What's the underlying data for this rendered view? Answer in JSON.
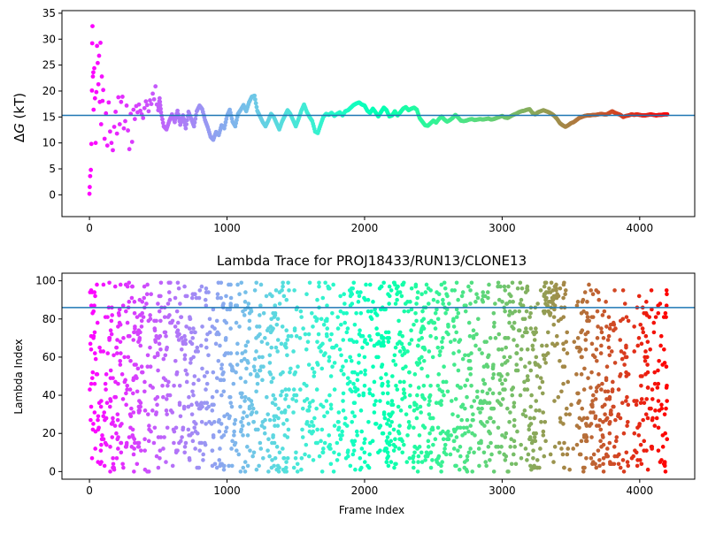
{
  "chart_data": [
    {
      "type": "scatter",
      "title": "",
      "xlabel": "",
      "ylabel": "ΔG (kT)",
      "ylabel_prefix": "Δ",
      "ylabel_var": "G",
      "ylabel_unit": " (kT)",
      "xlim": [
        -200,
        4400
      ],
      "ylim": [
        -4.2,
        35.5
      ],
      "xticks": [
        0,
        1000,
        2000,
        3000,
        4000
      ],
      "xtick_labels": [
        "0",
        "1000",
        "2000",
        "3000",
        "4000"
      ],
      "yticks": [
        0,
        5,
        10,
        15,
        20,
        25,
        30,
        35
      ],
      "ytick_labels": [
        "0",
        "5",
        "10",
        "15",
        "20",
        "25",
        "30",
        "35"
      ],
      "hline": 15.3,
      "hline_color": "#1f77b4",
      "colormap": "rainbow (frame index)",
      "frame_range": [
        0,
        4200
      ],
      "grid": false,
      "series": [
        {
          "points": [
            [
              0,
              0.2
            ],
            [
              2,
              1.5
            ],
            [
              5,
              3.6
            ],
            [
              10,
              4.8
            ],
            [
              14,
              9.8
            ],
            [
              18,
              20.1
            ],
            [
              20,
              29.2
            ],
            [
              22,
              32.5
            ],
            [
              25,
              22.8
            ],
            [
              28,
              23.6
            ],
            [
              30,
              16.4
            ],
            [
              35,
              24.4
            ],
            [
              40,
              18.6
            ],
            [
              45,
              10.0
            ],
            [
              50,
              19.8
            ],
            [
              55,
              28.7
            ],
            [
              60,
              25.4
            ],
            [
              65,
              21.3
            ],
            [
              70,
              26.8
            ],
            [
              75,
              17.9
            ],
            [
              80,
              29.3
            ],
            [
              85,
              13.6
            ],
            [
              90,
              22.8
            ],
            [
              95,
              18.1
            ],
            [
              100,
              20.2
            ],
            [
              110,
              10.8
            ],
            [
              120,
              15.7
            ],
            [
              130,
              9.5
            ],
            [
              140,
              17.8
            ],
            [
              150,
              12.2
            ],
            [
              160,
              10.0
            ],
            [
              170,
              8.6
            ],
            [
              180,
              13.1
            ],
            [
              190,
              16.0
            ],
            [
              200,
              11.8
            ],
            [
              210,
              18.8
            ],
            [
              220,
              13.6
            ],
            [
              230,
              17.9
            ],
            [
              240,
              18.9
            ],
            [
              250,
              12.8
            ],
            [
              260,
              14.2
            ],
            [
              270,
              17.2
            ],
            [
              280,
              12.4
            ],
            [
              290,
              8.8
            ],
            [
              300,
              15.6
            ],
            [
              310,
              10.2
            ],
            [
              320,
              16.4
            ],
            [
              330,
              14.6
            ],
            [
              340,
              17.1
            ],
            [
              350,
              15.9
            ],
            [
              360,
              17.4
            ],
            [
              370,
              16.2
            ],
            [
              380,
              15.5
            ],
            [
              390,
              14.8
            ],
            [
              400,
              16.7
            ],
            [
              410,
              18.0
            ],
            [
              420,
              17.3
            ],
            [
              430,
              16.1
            ],
            [
              440,
              18.2
            ],
            [
              450,
              17.5
            ],
            [
              460,
              19.5
            ],
            [
              470,
              18.4
            ],
            [
              480,
              20.9
            ],
            [
              490,
              17.4
            ],
            [
              500,
              16.3
            ],
            [
              510,
              18.6
            ],
            [
              520,
              15.9
            ],
            [
              540,
              13.2
            ],
            [
              560,
              12.6
            ],
            [
              580,
              14.2
            ],
            [
              600,
              15.5
            ],
            [
              620,
              14.0
            ],
            [
              640,
              16.2
            ],
            [
              660,
              13.5
            ],
            [
              680,
              15.3
            ],
            [
              700,
              12.8
            ],
            [
              720,
              16.0
            ],
            [
              740,
              14.6
            ],
            [
              760,
              13.2
            ],
            [
              780,
              16.1
            ],
            [
              800,
              17.2
            ],
            [
              820,
              16.5
            ],
            [
              840,
              14.4
            ],
            [
              860,
              13.0
            ],
            [
              880,
              11.2
            ],
            [
              900,
              10.6
            ],
            [
              920,
              12.1
            ],
            [
              940,
              11.5
            ],
            [
              960,
              13.4
            ],
            [
              980,
              12.8
            ],
            [
              1000,
              15.2
            ],
            [
              1020,
              16.4
            ],
            [
              1040,
              14.1
            ],
            [
              1060,
              13.2
            ],
            [
              1080,
              15.6
            ],
            [
              1100,
              16.4
            ],
            [
              1120,
              17.3
            ],
            [
              1140,
              16.1
            ],
            [
              1160,
              17.8
            ],
            [
              1180,
              18.9
            ],
            [
              1200,
              19.1
            ],
            [
              1220,
              16.2
            ],
            [
              1240,
              15.1
            ],
            [
              1260,
              14.0
            ],
            [
              1280,
              13.2
            ],
            [
              1300,
              14.3
            ],
            [
              1320,
              15.6
            ],
            [
              1340,
              15.0
            ],
            [
              1360,
              13.8
            ],
            [
              1380,
              12.6
            ],
            [
              1400,
              14.1
            ],
            [
              1420,
              15.2
            ],
            [
              1440,
              16.3
            ],
            [
              1460,
              15.6
            ],
            [
              1480,
              14.4
            ],
            [
              1500,
              13.2
            ],
            [
              1520,
              14.6
            ],
            [
              1540,
              16.2
            ],
            [
              1560,
              17.4
            ],
            [
              1580,
              16.0
            ],
            [
              1600,
              15.0
            ],
            [
              1620,
              14.2
            ],
            [
              1640,
              12.2
            ],
            [
              1660,
              11.9
            ],
            [
              1680,
              13.5
            ],
            [
              1700,
              15.0
            ],
            [
              1720,
              15.6
            ],
            [
              1740,
              15.4
            ],
            [
              1760,
              15.8
            ],
            [
              1780,
              15.2
            ],
            [
              1800,
              15.6
            ],
            [
              1820,
              15.9
            ],
            [
              1840,
              15.3
            ],
            [
              1860,
              16.1
            ],
            [
              1880,
              16.3
            ],
            [
              1900,
              16.8
            ],
            [
              1920,
              17.3
            ],
            [
              1940,
              17.6
            ],
            [
              1960,
              17.8
            ],
            [
              1980,
              17.4
            ],
            [
              2000,
              17.2
            ],
            [
              2020,
              16.2
            ],
            [
              2040,
              15.8
            ],
            [
              2060,
              16.6
            ],
            [
              2080,
              15.9
            ],
            [
              2100,
              15.1
            ],
            [
              2120,
              16.0
            ],
            [
              2140,
              16.8
            ],
            [
              2160,
              16.3
            ],
            [
              2180,
              15.1
            ],
            [
              2200,
              15.3
            ],
            [
              2220,
              16.1
            ],
            [
              2240,
              15.3
            ],
            [
              2260,
              15.9
            ],
            [
              2280,
              16.6
            ],
            [
              2300,
              16.9
            ],
            [
              2320,
              16.3
            ],
            [
              2340,
              16.6
            ],
            [
              2360,
              16.8
            ],
            [
              2380,
              16.4
            ],
            [
              2400,
              14.8
            ],
            [
              2420,
              14.1
            ],
            [
              2440,
              13.4
            ],
            [
              2460,
              13.3
            ],
            [
              2480,
              13.8
            ],
            [
              2500,
              14.3
            ],
            [
              2520,
              13.9
            ],
            [
              2540,
              14.6
            ],
            [
              2560,
              15.1
            ],
            [
              2580,
              14.5
            ],
            [
              2600,
              14.1
            ],
            [
              2620,
              14.4
            ],
            [
              2640,
              14.8
            ],
            [
              2660,
              15.4
            ],
            [
              2680,
              14.9
            ],
            [
              2700,
              14.3
            ],
            [
              2720,
              14.2
            ],
            [
              2740,
              14.3
            ],
            [
              2760,
              14.5
            ],
            [
              2780,
              14.6
            ],
            [
              2800,
              14.4
            ],
            [
              2820,
              14.5
            ],
            [
              2840,
              14.6
            ],
            [
              2860,
              14.5
            ],
            [
              2880,
              14.6
            ],
            [
              2900,
              14.7
            ],
            [
              2920,
              14.5
            ],
            [
              2940,
              14.6
            ],
            [
              2960,
              14.8
            ],
            [
              2980,
              15.0
            ],
            [
              3000,
              15.2
            ],
            [
              3020,
              14.9
            ],
            [
              3040,
              14.8
            ],
            [
              3060,
              15.1
            ],
            [
              3080,
              15.4
            ],
            [
              3100,
              15.6
            ],
            [
              3120,
              15.9
            ],
            [
              3140,
              16.1
            ],
            [
              3160,
              16.2
            ],
            [
              3180,
              16.4
            ],
            [
              3200,
              16.5
            ],
            [
              3220,
              15.8
            ],
            [
              3240,
              15.5
            ],
            [
              3260,
              15.9
            ],
            [
              3280,
              16.1
            ],
            [
              3300,
              16.3
            ],
            [
              3320,
              16.1
            ],
            [
              3340,
              15.9
            ],
            [
              3360,
              15.6
            ],
            [
              3380,
              15.2
            ],
            [
              3400,
              14.6
            ],
            [
              3420,
              13.8
            ],
            [
              3440,
              13.4
            ],
            [
              3460,
              13.1
            ],
            [
              3480,
              13.4
            ],
            [
              3500,
              13.8
            ],
            [
              3520,
              14.0
            ],
            [
              3540,
              14.4
            ],
            [
              3560,
              14.8
            ],
            [
              3580,
              15.0
            ],
            [
              3600,
              15.2
            ],
            [
              3620,
              15.3
            ],
            [
              3640,
              15.3
            ],
            [
              3660,
              15.4
            ],
            [
              3680,
              15.4
            ],
            [
              3700,
              15.5
            ],
            [
              3720,
              15.6
            ],
            [
              3740,
              15.5
            ],
            [
              3760,
              15.5
            ],
            [
              3780,
              15.8
            ],
            [
              3800,
              16.1
            ],
            [
              3820,
              15.8
            ],
            [
              3840,
              15.6
            ],
            [
              3860,
              15.4
            ],
            [
              3880,
              15.0
            ],
            [
              3900,
              15.2
            ],
            [
              3920,
              15.3
            ],
            [
              3940,
              15.5
            ],
            [
              3960,
              15.4
            ],
            [
              3980,
              15.5
            ],
            [
              4000,
              15.4
            ],
            [
              4020,
              15.3
            ],
            [
              4040,
              15.3
            ],
            [
              4060,
              15.4
            ],
            [
              4080,
              15.5
            ],
            [
              4100,
              15.4
            ],
            [
              4120,
              15.3
            ],
            [
              4140,
              15.4
            ],
            [
              4160,
              15.4
            ],
            [
              4180,
              15.5
            ],
            [
              4200,
              15.5
            ]
          ]
        }
      ]
    },
    {
      "type": "scatter",
      "title": "Lambda Trace for PROJ18433/RUN13/CLONE13",
      "xlabel": "Frame Index",
      "ylabel": "Lambda Index",
      "xlim": [
        -200,
        4400
      ],
      "ylim": [
        -4,
        104
      ],
      "xticks": [
        0,
        1000,
        2000,
        3000,
        4000
      ],
      "xtick_labels": [
        "0",
        "1000",
        "2000",
        "3000",
        "4000"
      ],
      "yticks": [
        0,
        20,
        40,
        60,
        80,
        100
      ],
      "ytick_labels": [
        "0",
        "20",
        "40",
        "60",
        "80",
        "100"
      ],
      "hline": 86,
      "hline_color": "#1f77b4",
      "colormap": "rainbow (frame index)",
      "frame_range": [
        0,
        4200
      ],
      "grid": false,
      "series": [
        {
          "description_of_points": "about 2300 frames; lambda index ranges 0–99 for each frame, densely scattered across the full 0–4200 frame range, with a dense cluster near lambda 85–99 around frame 3350",
          "frame_start": 0,
          "frame_end": 4200,
          "lambda_min": 0,
          "lambda_max": 99
        }
      ]
    }
  ]
}
